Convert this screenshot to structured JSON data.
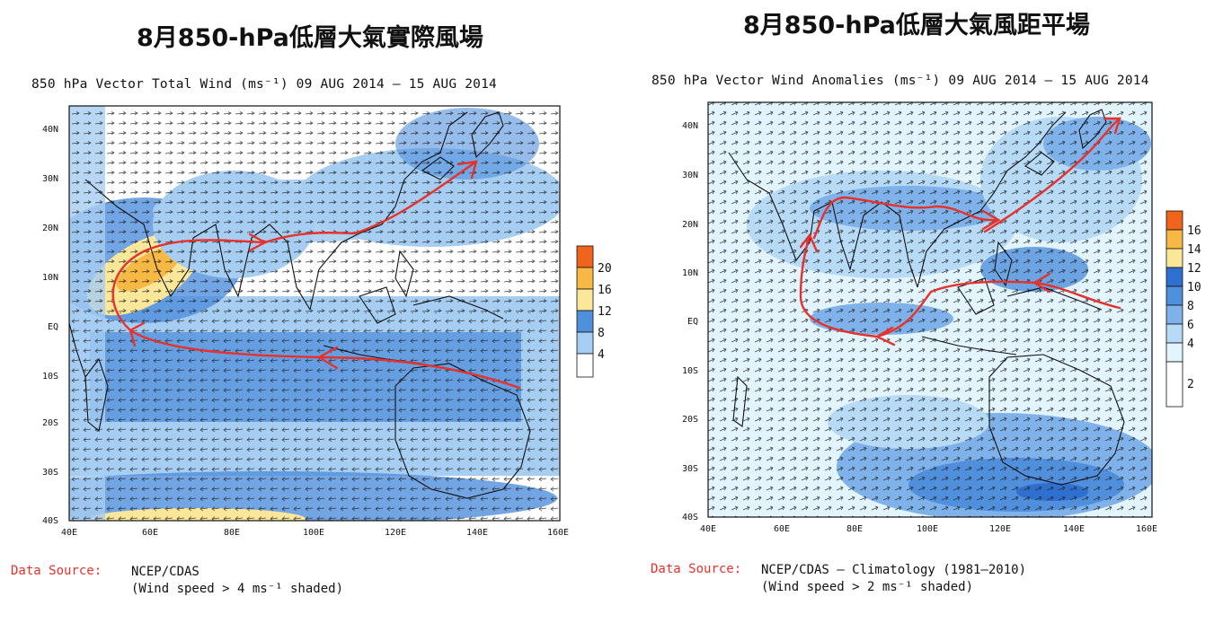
{
  "panels": [
    {
      "id": "left",
      "heading": "8月850-hPa低層大氣實際風場",
      "map_title": "850 hPa Vector Total Wind (ms⁻¹) 09 AUG 2014 – 15 AUG 2014",
      "source_label": "Data Source:",
      "source_lines": [
        "NCEP/CDAS",
        "(Wind speed > 4 ms⁻¹ shaded)"
      ],
      "lat_labels": [
        "40N",
        "30N",
        "20N",
        "10N",
        "EQ",
        "10S",
        "20S",
        "30S",
        "40S"
      ],
      "lon_labels": [
        "40E",
        "60E",
        "80E",
        "100E",
        "120E",
        "140E",
        "160E"
      ],
      "colorbar": {
        "levels": [
          "20",
          "16",
          "12",
          "8",
          "4"
        ],
        "colors": [
          "#f0641e",
          "#f7b944",
          "#fbe79a",
          "#4f8fdc",
          "#a6cdf2",
          "#ffffff"
        ]
      }
    },
    {
      "id": "right",
      "heading": "8月850-hPa低層大氣風距平場",
      "map_title": "850 hPa Vector Wind Anomalies (ms⁻¹) 09 AUG 2014 – 15 AUG 2014",
      "source_label": "Data Source:",
      "source_lines": [
        "NCEP/CDAS – Climatology (1981–2010)",
        "(Wind speed > 2 ms⁻¹ shaded)"
      ],
      "lat_labels": [
        "40N",
        "30N",
        "20N",
        "10N",
        "EQ",
        "10S",
        "20S",
        "30S",
        "40S"
      ],
      "lon_labels": [
        "40E",
        "60E",
        "80E",
        "100E",
        "120E",
        "140E",
        "160E"
      ],
      "colorbar": {
        "levels": [
          "16",
          "14",
          "12",
          "10",
          "8",
          "6",
          "4",
          "2"
        ],
        "colors": [
          "#f0641e",
          "#f7b944",
          "#fbe79a",
          "#2f6fd0",
          "#4f8fdc",
          "#7fb2ea",
          "#b7dbf6",
          "#e2f4fd",
          "#ffffff"
        ]
      }
    }
  ],
  "colors": {
    "flow_arrow": "#e8312a",
    "source_label": "#e8312a",
    "coast": "#111111"
  }
}
